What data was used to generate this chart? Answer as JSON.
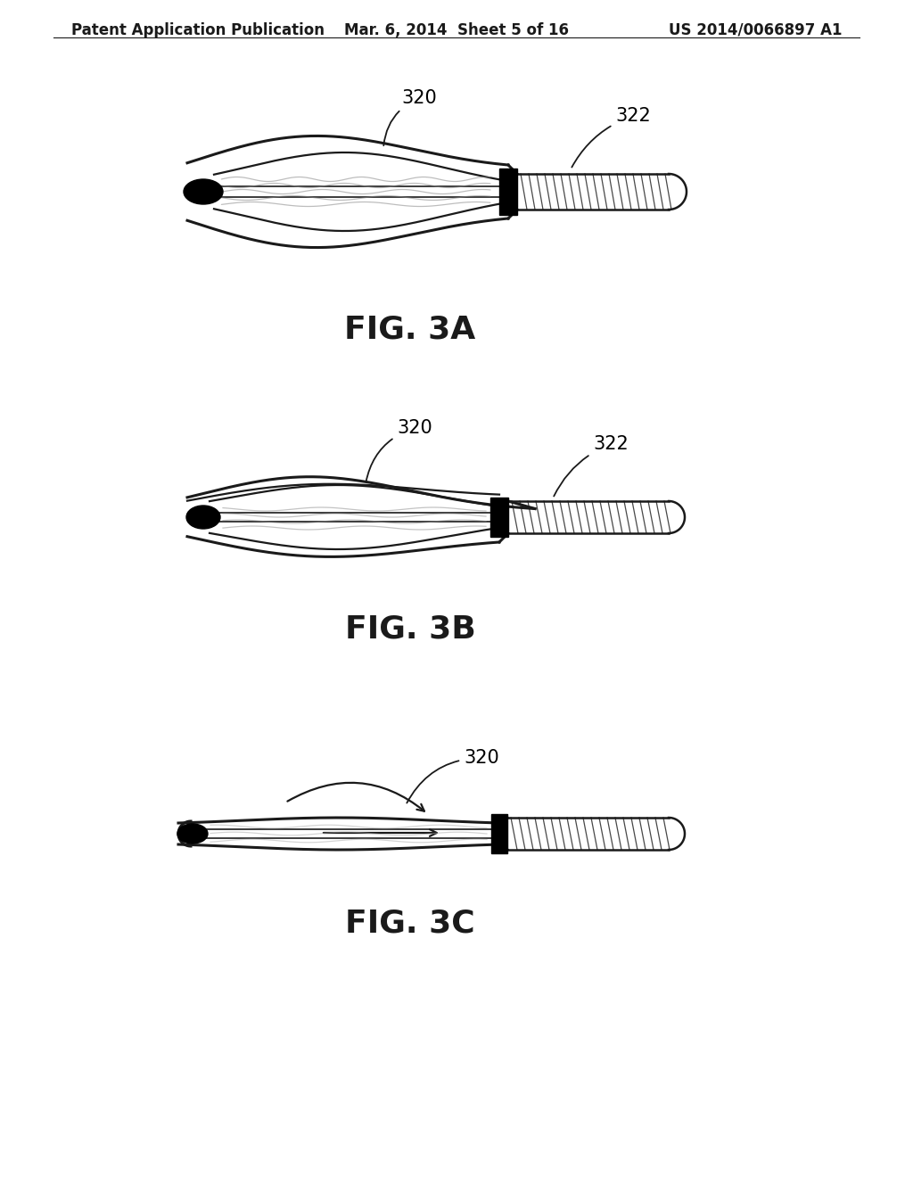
{
  "header_left": "Patent Application Publication",
  "header_mid": "Mar. 6, 2014  Sheet 5 of 16",
  "header_right": "US 2014/0066897 A1",
  "fig_labels": [
    "FIG. 3A",
    "FIG. 3B",
    "FIG. 3C"
  ],
  "background": "#ffffff",
  "line_color": "#1a1a1a",
  "fig_label_fontsize": 26,
  "header_fontsize": 12,
  "ref_fontsize": 15
}
